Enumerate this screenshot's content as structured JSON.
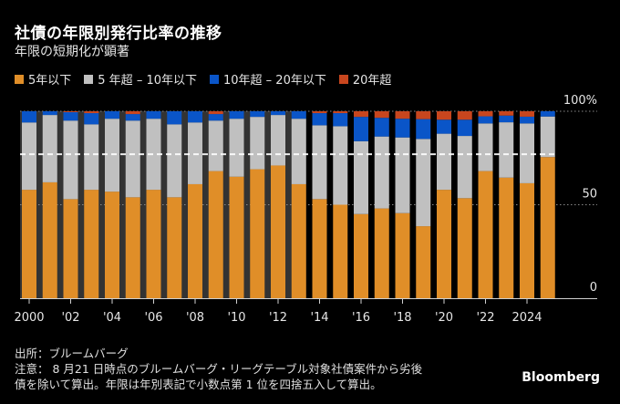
{
  "title": "社債の年限別発行比率の推移",
  "subtitle": "年限の短期化が顕著",
  "legend": [
    {
      "label": "5年以下",
      "color": "#e08e28"
    },
    {
      "label": "5 年超 – 10年以下",
      "color": "#c0c0c0"
    },
    {
      "label": "10年超 – 20年以下",
      "color": "#0a55c8"
    },
    {
      "label": "20年超",
      "color": "#c8461e"
    }
  ],
  "footer": {
    "source": "出所：ブルームバーグ",
    "note_line1": "注意： 8 月21 日時点のブルームバーグ・リーグテーブル対象社債案件から劣後",
    "note_line2": "債を除いて算出。年限は年別表記で小数点第 1 位を四捨五入して算出。"
  },
  "logo": "Bloomberg",
  "chart_data": {
    "type": "bar",
    "stacked": true,
    "title": "社債の年限別発行比率の推移",
    "subtitle": "年限の短期化が顕著",
    "xlabel": "",
    "ylabel": "",
    "ylim": [
      0,
      100
    ],
    "y_ticks": [
      {
        "value": 100,
        "label": "100%"
      },
      {
        "value": 50,
        "label": "50"
      },
      {
        "value": 0,
        "label": "0"
      }
    ],
    "y_axis_position": "right",
    "x": [
      2000,
      2001,
      2002,
      2003,
      2004,
      2005,
      2006,
      2007,
      2008,
      2009,
      2010,
      2011,
      2012,
      2013,
      2014,
      2015,
      2016,
      2017,
      2018,
      2019,
      2020,
      2021,
      2022,
      2023,
      2024,
      2025
    ],
    "x_tick_labels": [
      {
        "year": 2000,
        "label": "2000"
      },
      {
        "year": 2002,
        "label": "'02"
      },
      {
        "year": 2004,
        "label": "'04"
      },
      {
        "year": 2006,
        "label": "'06"
      },
      {
        "year": 2008,
        "label": "'08"
      },
      {
        "year": 2010,
        "label": "'10"
      },
      {
        "year": 2012,
        "label": "'12"
      },
      {
        "year": 2014,
        "label": "'14"
      },
      {
        "year": 2016,
        "label": "'16"
      },
      {
        "year": 2018,
        "label": "'18"
      },
      {
        "year": 2020,
        "label": "'20"
      },
      {
        "year": 2022,
        "label": "'22"
      },
      {
        "year": 2024,
        "label": "2024"
      }
    ],
    "series": [
      {
        "name": "5年以下",
        "color": "#e08e28",
        "values": [
          58,
          62,
          53,
          58,
          57,
          54,
          58,
          54,
          61,
          68,
          65,
          69,
          71,
          61,
          53,
          50,
          45,
          48,
          45.5,
          38.5,
          58,
          53.5,
          68,
          64.5,
          61.5,
          75.5
        ]
      },
      {
        "name": "5 年超 – 10年以下",
        "color": "#c0c0c0",
        "values": [
          36,
          36,
          42,
          35,
          39,
          41,
          38,
          39,
          33,
          27,
          31,
          28,
          27,
          35,
          39.5,
          42,
          39,
          38.5,
          40.5,
          46.7,
          30,
          33.3,
          25.5,
          29.6,
          32,
          21.7
        ]
      },
      {
        "name": "10年超 – 20年以下",
        "color": "#0a55c8",
        "values": [
          6,
          2,
          4.5,
          6,
          4,
          3.5,
          4,
          7,
          6,
          3.5,
          4,
          3,
          2,
          4,
          6.5,
          7,
          13,
          10,
          10,
          10.6,
          7.5,
          8.7,
          3.8,
          3.6,
          3.6,
          2.8
        ]
      },
      {
        "name": "20年超",
        "color": "#c8461e",
        "values": [
          0,
          0,
          0.5,
          1,
          0,
          1.5,
          0,
          0,
          0,
          1.5,
          0,
          0,
          0,
          0,
          1,
          1,
          3,
          3.5,
          4,
          4.2,
          4.5,
          4.5,
          2.7,
          2.3,
          2.9,
          0
        ]
      }
    ],
    "reference_line": {
      "value": 77,
      "style": "dashed",
      "color": "#ffffff"
    },
    "shaded_period": {
      "from": 2000,
      "to": 2013,
      "color": "#333333"
    },
    "grid": "dotted at 0/50/100",
    "legend_position": "top-left"
  }
}
